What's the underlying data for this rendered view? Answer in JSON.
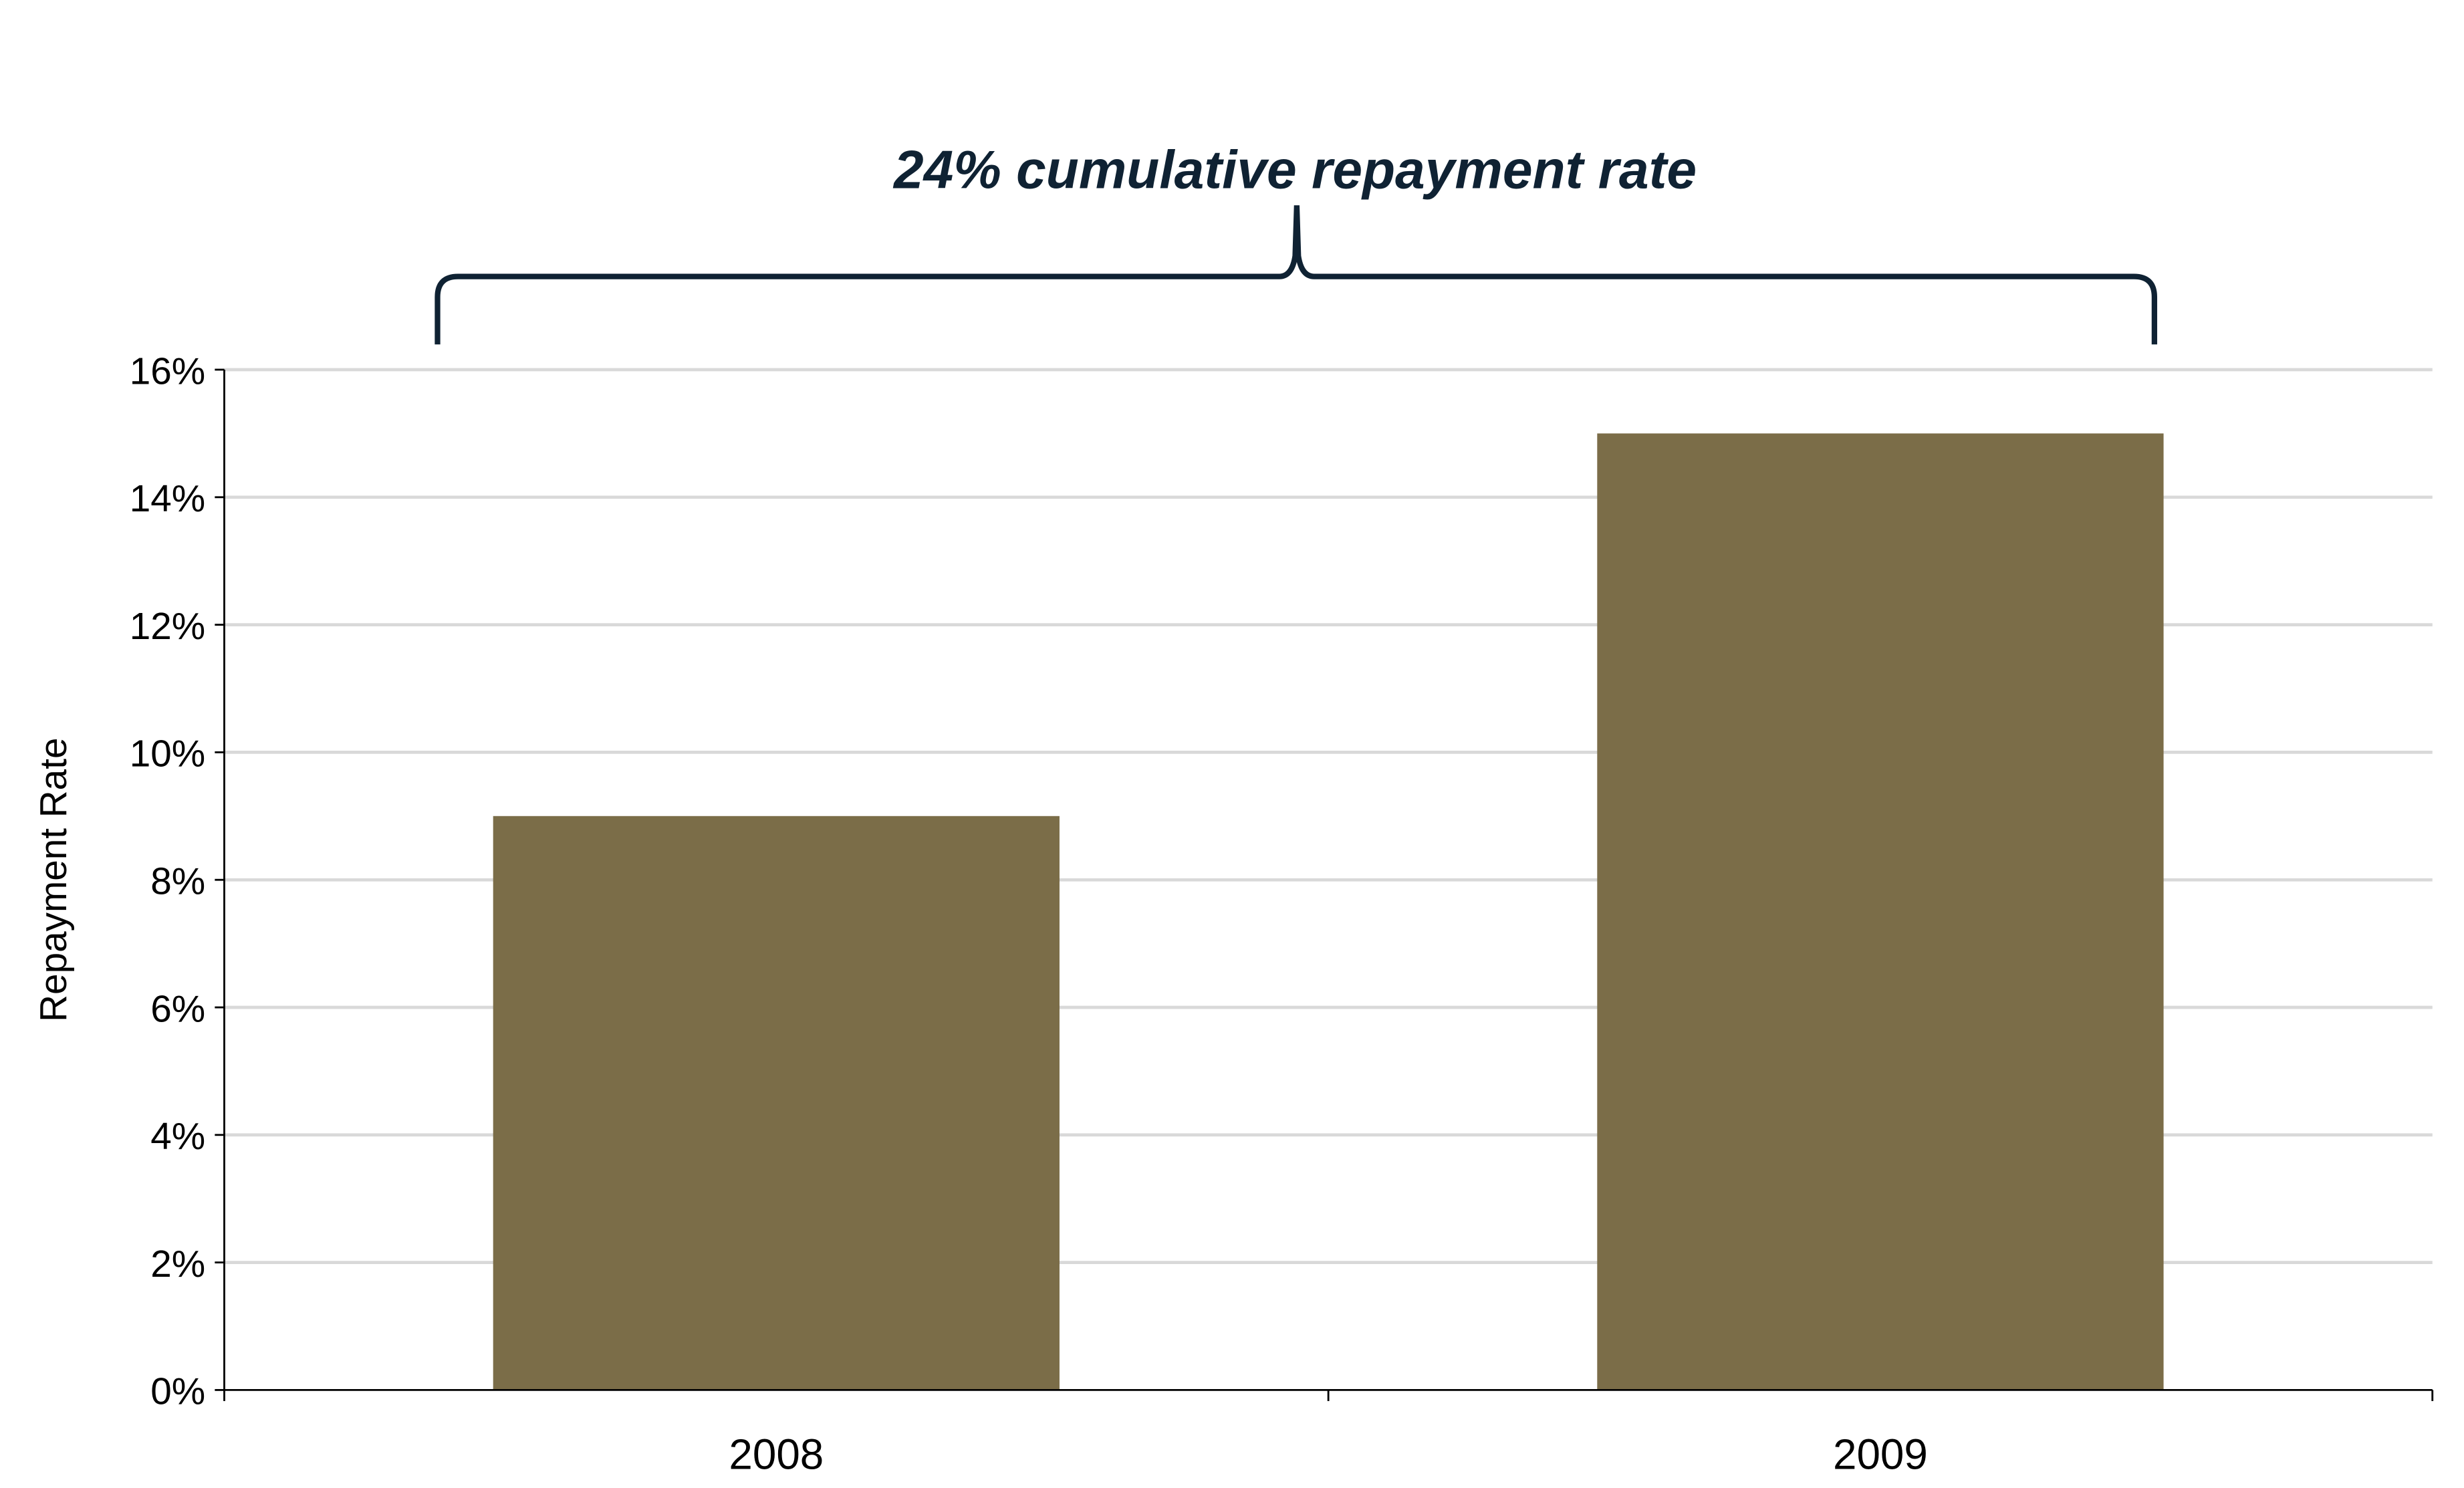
{
  "chart_data": {
    "type": "bar",
    "title": "",
    "categories": [
      "2008",
      "2009"
    ],
    "values": [
      9,
      15
    ],
    "value_unit": "%",
    "xlabel": "",
    "ylabel": "Repayment Rate",
    "ylim": [
      0,
      16
    ],
    "yticks": [
      "0%",
      "2%",
      "4%",
      "6%",
      "8%",
      "10%",
      "12%",
      "14%",
      "16%"
    ],
    "grid": true,
    "annotation": "24% cumulative repayment rate",
    "bar_color": "#7b6d48",
    "annotation_color": "#0f2233"
  }
}
